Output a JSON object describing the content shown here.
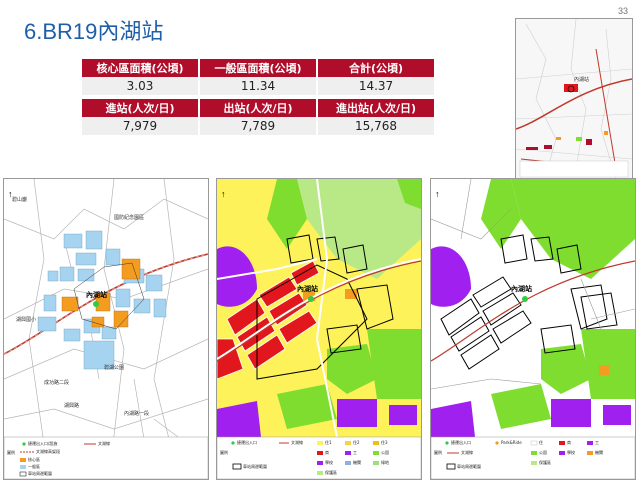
{
  "page": {
    "title": "6.BR19內湖站",
    "page_number": "33"
  },
  "stats": {
    "headers_row1": [
      "核心區面積(公頃)",
      "一般區面積(公頃)",
      "合計(公頃)"
    ],
    "values_row1": [
      "3.03",
      "11.34",
      "14.37"
    ],
    "headers_row2": [
      "進站(人次/日)",
      "出站(人次/日)",
      "進出站(人次/日)"
    ],
    "values_row2": [
      "7,979",
      "7,789",
      "15,768"
    ]
  },
  "inset_map": {
    "station_label": "內湖站"
  },
  "maps": {
    "left": {
      "station_label": "內湖站",
      "place_labels": [
        "碧山巖",
        "湖興國小",
        "碧湖公園",
        "國防紀念園區",
        "湖興路",
        "內湖路一段",
        "成功路二段"
      ],
      "legend_title": "圖例",
      "legend_items": [
        "捷運出入口/設施",
        "文湖線",
        "文湖線高架段",
        "核心區",
        "一般區",
        "車站周邊範圍"
      ]
    },
    "middle": {
      "station_label": "內湖站",
      "legend_title": "圖例",
      "legend_items": [
        "捷運出入口",
        "文湖線",
        "住1",
        "住2",
        "住3",
        "商",
        "工",
        "公園",
        "學校",
        "機關",
        "綠地",
        "保護區",
        "車站周邊範圍"
      ]
    },
    "right": {
      "station_label": "內湖站",
      "legend_title": "圖例",
      "legend_items": [
        "捷運出入口",
        "Park&Ride",
        "文湖線",
        "住",
        "商",
        "工",
        "公園",
        "學校",
        "機關",
        "保護區",
        "車站周邊範圍"
      ]
    }
  },
  "colors": {
    "title": "#1f5fa8",
    "header": "#b00d2a",
    "value_bg": "#efefef",
    "core_zone": "#f39c1f",
    "general_zone": "#a6d4f0",
    "residential": "#fdf25a",
    "commercial": "#e2161d",
    "park": "#7fdd2f",
    "conservation": "#b8e986",
    "school": "#a020f0",
    "rail": "#c0392b"
  }
}
